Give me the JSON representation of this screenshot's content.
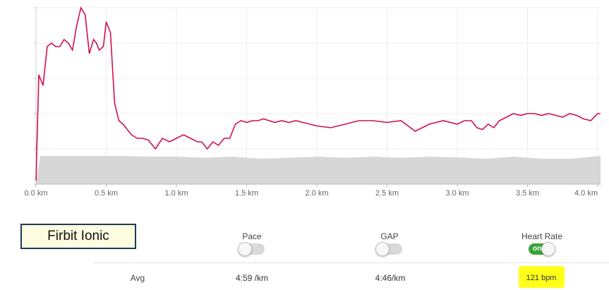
{
  "device": {
    "name": "Firbit Ionic"
  },
  "metrics": [
    {
      "label": "Pace",
      "toggle_on": false,
      "avg": "4:59 /km"
    },
    {
      "label": "GAP",
      "toggle_on": false,
      "avg": "4:46/km"
    },
    {
      "label": "Heart Rate",
      "toggle_on": true,
      "toggle_text": "on",
      "avg": "121 bpm"
    }
  ],
  "row_label": "Avg",
  "colors": {
    "heart_rate": "#d0104c",
    "elevation": "#d7d7d7",
    "highlight": "#ffff1a",
    "toggle_on": "#3aa33a"
  },
  "chart_data": {
    "type": "line",
    "xlabel": "",
    "ylabel": "",
    "x_ticks": [
      "0.0 km",
      "0.5 km",
      "1.0 km",
      "1.5 km",
      "2.0 km",
      "2.5 km",
      "3.0 km",
      "3.5 km",
      "4.0 km"
    ],
    "xlim": [
      0,
      4.02
    ],
    "ylim": [
      0,
      5
    ],
    "y_ticks_labeled": false,
    "grid": true,
    "series": [
      {
        "kind": "line",
        "x": [
          0.0,
          0.02,
          0.05,
          0.08,
          0.11,
          0.14,
          0.17,
          0.2,
          0.23,
          0.26,
          0.29,
          0.32,
          0.35,
          0.38,
          0.41,
          0.43,
          0.45,
          0.48,
          0.5,
          0.53,
          0.56,
          0.59,
          0.62,
          0.64,
          0.66,
          0.68,
          0.7,
          0.72,
          0.76,
          0.8,
          0.85,
          0.9,
          0.95,
          1.0,
          1.05,
          1.1,
          1.15,
          1.18,
          1.22,
          1.26,
          1.3,
          1.34,
          1.38,
          1.42,
          1.46,
          1.5,
          1.54,
          1.58,
          1.62,
          1.66,
          1.7,
          1.75,
          1.8,
          1.85,
          1.9,
          1.95,
          2.0,
          2.1,
          2.2,
          2.3,
          2.4,
          2.5,
          2.6,
          2.7,
          2.8,
          2.9,
          3.0,
          3.05,
          3.1,
          3.14,
          3.18,
          3.22,
          3.26,
          3.3,
          3.35,
          3.4,
          3.45,
          3.5,
          3.55,
          3.6,
          3.65,
          3.7,
          3.75,
          3.8,
          3.85,
          3.9,
          3.95,
          4.0,
          4.02
        ],
        "y": [
          0.1,
          3.1,
          2.8,
          3.9,
          4.0,
          3.9,
          3.9,
          4.1,
          4.0,
          3.8,
          4.5,
          5.0,
          4.8,
          3.7,
          4.1,
          4.0,
          3.8,
          3.9,
          4.6,
          4.3,
          2.3,
          1.8,
          1.7,
          1.6,
          1.5,
          1.4,
          1.35,
          1.3,
          1.3,
          1.25,
          1.0,
          1.3,
          1.2,
          1.3,
          1.4,
          1.3,
          1.2,
          1.2,
          1.0,
          1.2,
          1.1,
          1.3,
          1.3,
          1.7,
          1.8,
          1.75,
          1.8,
          1.8,
          1.85,
          1.8,
          1.75,
          1.8,
          1.75,
          1.8,
          1.75,
          1.7,
          1.65,
          1.6,
          1.7,
          1.8,
          1.8,
          1.75,
          1.8,
          1.5,
          1.7,
          1.8,
          1.7,
          1.8,
          1.8,
          1.6,
          1.55,
          1.7,
          1.6,
          1.8,
          1.9,
          2.0,
          1.95,
          2.0,
          2.0,
          1.95,
          2.0,
          1.95,
          1.9,
          2.0,
          1.95,
          1.85,
          1.8,
          2.0,
          2.0
        ]
      },
      {
        "kind": "area",
        "x": [
          0.0,
          0.03,
          0.05,
          0.2,
          0.4,
          0.6,
          0.8,
          1.0,
          1.2,
          1.4,
          1.6,
          1.8,
          2.0,
          2.2,
          2.4,
          2.6,
          2.8,
          3.0,
          3.2,
          3.4,
          3.6,
          3.8,
          4.02
        ],
        "y": [
          0.05,
          0.8,
          0.8,
          0.8,
          0.8,
          0.8,
          0.78,
          0.78,
          0.75,
          0.78,
          0.72,
          0.75,
          0.78,
          0.75,
          0.78,
          0.75,
          0.78,
          0.76,
          0.72,
          0.78,
          0.72,
          0.72,
          0.8
        ]
      }
    ]
  }
}
